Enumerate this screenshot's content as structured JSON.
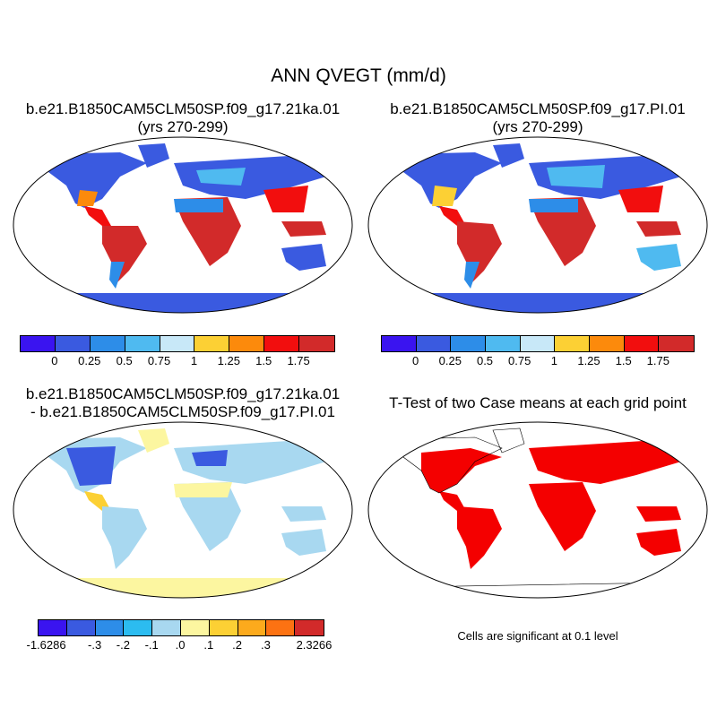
{
  "title": "ANN QVEGT (mm/d)",
  "panels": {
    "top_left": {
      "title_line1": "b.e21.B1850CAM5CLM50SP.f09_g17.21ka.01",
      "title_line2": "(yrs 270-299)"
    },
    "top_right": {
      "title_line1": "b.e21.B1850CAM5CLM50SP.f09_g17.PI.01",
      "title_line2": "(yrs 270-299)"
    },
    "bottom_left": {
      "title_line1": "b.e21.B1850CAM5CLM50SP.f09_g17.21ka.01",
      "title_line2": "- b.e21.B1850CAM5CLM50SP.f09_g17.PI.01"
    },
    "bottom_right": {
      "title_line1": "T-Test of two Case means at each grid point",
      "note": "Cells are significant at 0.1 level"
    }
  },
  "colorbars": {
    "abs": {
      "colors": [
        "#3a14f0",
        "#3a5ae0",
        "#2d8de8",
        "#4fbaf0",
        "#c8e8f8",
        "#fcd034",
        "#fc8a0c",
        "#f20e0e",
        "#d22a2a"
      ],
      "labels": [
        "0",
        "0.25",
        "0.5",
        "0.75",
        "1",
        "1.25",
        "1.5",
        "1.75"
      ]
    },
    "diff": {
      "colors": [
        "#3a14f0",
        "#3a5ae0",
        "#2d8de8",
        "#2cbcf0",
        "#a8d8f0",
        "#fcf6a0",
        "#fcd034",
        "#fcaa1c",
        "#fc7212",
        "#d22a2a"
      ],
      "labels": [
        "-1.6286",
        "-.3",
        "-.2",
        "-.1",
        ".0",
        ".1",
        ".2",
        ".3",
        "2.3266"
      ]
    }
  },
  "colors": {
    "significant": "#f40000",
    "coastline": "#000000"
  }
}
